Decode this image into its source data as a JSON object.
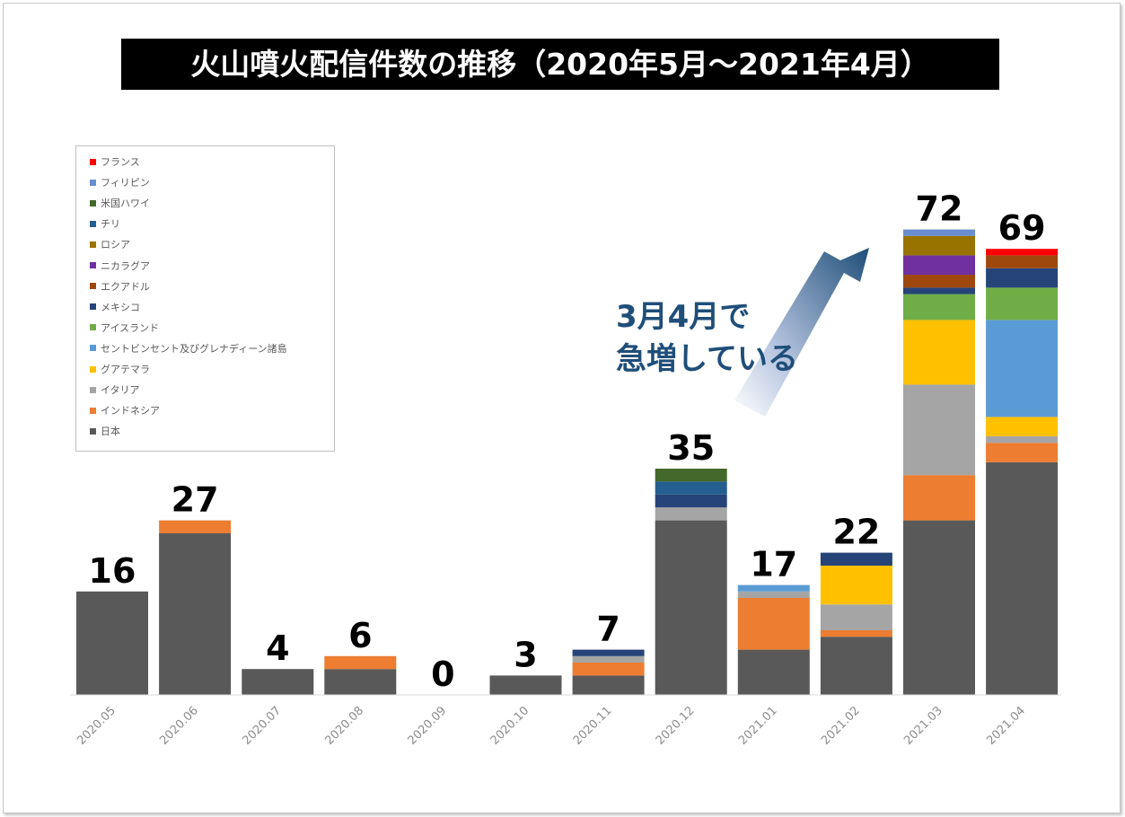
{
  "chart_data": {
    "type": "bar",
    "stacked": true,
    "title": "火山噴火配信件数の推移（2020年5月～2021年4月）",
    "categories": [
      "2020.05",
      "2020.06",
      "2020.07",
      "2020.08",
      "2020.09",
      "2020.10",
      "2020.11",
      "2020.12",
      "2021.01",
      "2021.02",
      "2021.03",
      "2021.04"
    ],
    "totals": [
      16,
      27,
      4,
      6,
      0,
      3,
      7,
      35,
      17,
      22,
      72,
      69
    ],
    "series": [
      {
        "name": "日本",
        "color": "#595959",
        "values": [
          16,
          25,
          4,
          4,
          0,
          3,
          3,
          27,
          7,
          9,
          27,
          36
        ]
      },
      {
        "name": "インドネシア",
        "color": "#ed7d31",
        "values": [
          0,
          2,
          0,
          2,
          0,
          0,
          2,
          0,
          8,
          1,
          7,
          3
        ]
      },
      {
        "name": "イタリア",
        "color": "#a5a5a5",
        "values": [
          0,
          0,
          0,
          0,
          0,
          0,
          1,
          2,
          1,
          4,
          14,
          1
        ]
      },
      {
        "name": "グアテマラ",
        "color": "#ffc000",
        "values": [
          0,
          0,
          0,
          0,
          0,
          0,
          0,
          0,
          0,
          6,
          10,
          3
        ]
      },
      {
        "name": "セントビンセント及びグレナディーン諸島",
        "color": "#5b9bd5",
        "values": [
          0,
          0,
          0,
          0,
          0,
          0,
          0,
          0,
          1,
          0,
          0,
          15
        ]
      },
      {
        "name": "アイスランド",
        "color": "#70ad47",
        "values": [
          0,
          0,
          0,
          0,
          0,
          0,
          0,
          0,
          0,
          0,
          4,
          5
        ]
      },
      {
        "name": "メキシコ",
        "color": "#264478",
        "values": [
          0,
          0,
          0,
          0,
          0,
          0,
          1,
          2,
          0,
          2,
          1,
          3
        ]
      },
      {
        "name": "エクアドル",
        "color": "#9e480e",
        "values": [
          0,
          0,
          0,
          0,
          0,
          0,
          0,
          0,
          0,
          0,
          2,
          2
        ]
      },
      {
        "name": "ニカラグア",
        "color": "#7030a0",
        "values": [
          0,
          0,
          0,
          0,
          0,
          0,
          0,
          0,
          0,
          0,
          3,
          0
        ]
      },
      {
        "name": "ロシア",
        "color": "#997300",
        "values": [
          0,
          0,
          0,
          0,
          0,
          0,
          0,
          0,
          0,
          0,
          3,
          0
        ]
      },
      {
        "name": "チリ",
        "color": "#255e91",
        "values": [
          0,
          0,
          0,
          0,
          0,
          0,
          0,
          2,
          0,
          0,
          0,
          0
        ]
      },
      {
        "name": "米国ハワイ",
        "color": "#43682b",
        "values": [
          0,
          0,
          0,
          0,
          0,
          0,
          0,
          2,
          0,
          0,
          0,
          0
        ]
      },
      {
        "name": "フィリピン",
        "color": "#698ed0",
        "values": [
          0,
          0,
          0,
          0,
          0,
          0,
          0,
          0,
          0,
          0,
          1,
          0
        ]
      },
      {
        "name": "フランス",
        "color": "#ff0000",
        "values": [
          0,
          0,
          0,
          0,
          0,
          0,
          0,
          0,
          0,
          0,
          0,
          1
        ]
      }
    ],
    "ylim": [
      0,
      72
    ],
    "legend_position": "upper-left",
    "annotation": [
      "3月4月で",
      "急増している"
    ]
  }
}
